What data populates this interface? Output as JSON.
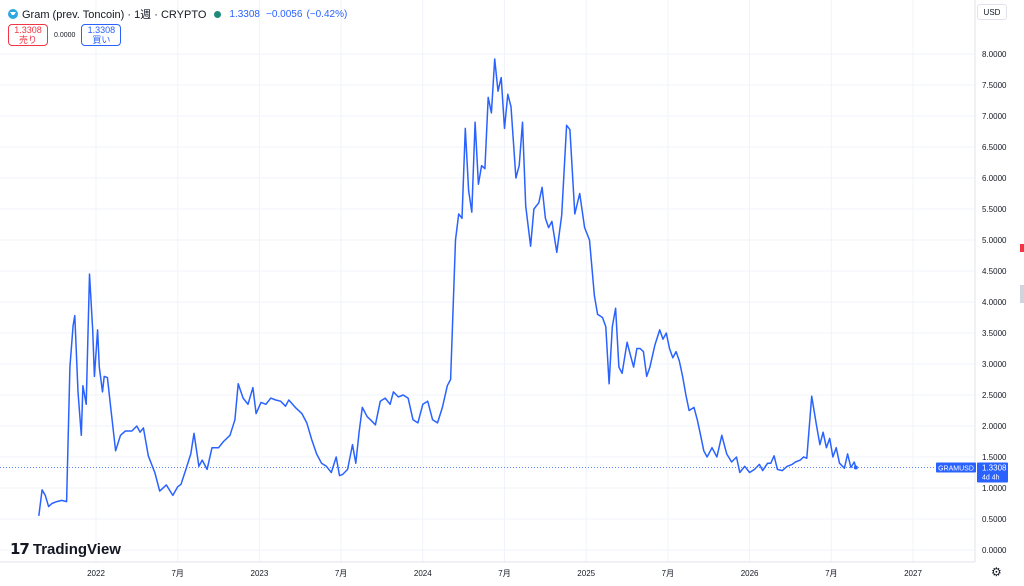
{
  "header": {
    "title": "Gram (prev. Toncoin) · 1週 · CRYPTO",
    "price": "1.3308",
    "change": "−0.0056",
    "change_pct": "(−0.42%)"
  },
  "trade": {
    "sell_price": "1.3308",
    "sell_label": "売り",
    "spread": "0.0000",
    "buy_price": "1.3308",
    "buy_label": "買い"
  },
  "currency": "USD",
  "branding": {
    "name": "TradingView"
  },
  "price_tag": {
    "symbol": "GRAMUSD",
    "value": "1.3308",
    "countdown": "4d 4h",
    "value_num": 1.3308
  },
  "colors": {
    "line": "#2962ff",
    "tag": "#2962ff",
    "sell": "#f23645",
    "buy": "#2962ff",
    "grid": "#f0f3fa"
  },
  "chart_data": {
    "type": "line",
    "title": "",
    "xlabel": "",
    "ylabel": "",
    "ylim": [
      0,
      8.5
    ],
    "grid": true,
    "y_ticks": [
      "0.0000",
      "0.5000",
      "1.0000",
      "1.5000",
      "2.0000",
      "2.5000",
      "3.0000",
      "3.5000",
      "4.0000",
      "4.5000",
      "5.0000",
      "5.5000",
      "6.0000",
      "6.5000",
      "7.0000",
      "7.5000",
      "8.0000"
    ],
    "x_ticks": [
      {
        "label": "2022",
        "t": 2022.0
      },
      {
        "label": "7月",
        "t": 2022.5
      },
      {
        "label": "2023",
        "t": 2023.0
      },
      {
        "label": "7月",
        "t": 2023.5
      },
      {
        "label": "2024",
        "t": 2024.0
      },
      {
        "label": "7月",
        "t": 2024.5
      },
      {
        "label": "2025",
        "t": 2025.0
      },
      {
        "label": "7月",
        "t": 2025.5
      },
      {
        "label": "2026",
        "t": 2026.0
      },
      {
        "label": "7月",
        "t": 2026.5
      },
      {
        "label": "2027",
        "t": 2027.0
      }
    ],
    "series": [
      {
        "values": [
          [
            2021.65,
            0.55
          ],
          [
            2021.67,
            0.97
          ],
          [
            2021.69,
            0.88
          ],
          [
            2021.71,
            0.7
          ],
          [
            2021.73,
            0.75
          ],
          [
            2021.76,
            0.78
          ],
          [
            2021.79,
            0.8
          ],
          [
            2021.82,
            0.78
          ],
          [
            2021.84,
            2.95
          ],
          [
            2021.86,
            3.62
          ],
          [
            2021.87,
            3.78
          ],
          [
            2021.89,
            2.55
          ],
          [
            2021.91,
            1.85
          ],
          [
            2021.92,
            2.65
          ],
          [
            2021.94,
            2.35
          ],
          [
            2021.96,
            4.45
          ],
          [
            2021.98,
            3.55
          ],
          [
            2021.99,
            2.8
          ],
          [
            2022.01,
            3.55
          ],
          [
            2022.02,
            2.95
          ],
          [
            2022.04,
            2.55
          ],
          [
            2022.05,
            2.8
          ],
          [
            2022.07,
            2.78
          ],
          [
            2022.09,
            2.3
          ],
          [
            2022.12,
            1.6
          ],
          [
            2022.15,
            1.85
          ],
          [
            2022.18,
            1.92
          ],
          [
            2022.22,
            1.92
          ],
          [
            2022.25,
            2.0
          ],
          [
            2022.27,
            1.9
          ],
          [
            2022.29,
            1.97
          ],
          [
            2022.32,
            1.52
          ],
          [
            2022.36,
            1.25
          ],
          [
            2022.39,
            0.95
          ],
          [
            2022.43,
            1.05
          ],
          [
            2022.47,
            0.88
          ],
          [
            2022.5,
            1.02
          ],
          [
            2022.52,
            1.06
          ],
          [
            2022.55,
            1.3
          ],
          [
            2022.58,
            1.55
          ],
          [
            2022.6,
            1.88
          ],
          [
            2022.63,
            1.35
          ],
          [
            2022.65,
            1.45
          ],
          [
            2022.68,
            1.3
          ],
          [
            2022.71,
            1.65
          ],
          [
            2022.75,
            1.65
          ],
          [
            2022.78,
            1.75
          ],
          [
            2022.82,
            1.85
          ],
          [
            2022.85,
            2.1
          ],
          [
            2022.87,
            2.68
          ],
          [
            2022.9,
            2.45
          ],
          [
            2022.93,
            2.35
          ],
          [
            2022.96,
            2.62
          ],
          [
            2022.98,
            2.2
          ],
          [
            2023.01,
            2.38
          ],
          [
            2023.04,
            2.35
          ],
          [
            2023.07,
            2.45
          ],
          [
            2023.1,
            2.42
          ],
          [
            2023.13,
            2.4
          ],
          [
            2023.16,
            2.32
          ],
          [
            2023.18,
            2.42
          ],
          [
            2023.22,
            2.3
          ],
          [
            2023.26,
            2.2
          ],
          [
            2023.29,
            2.05
          ],
          [
            2023.32,
            1.78
          ],
          [
            2023.35,
            1.55
          ],
          [
            2023.38,
            1.4
          ],
          [
            2023.41,
            1.35
          ],
          [
            2023.44,
            1.25
          ],
          [
            2023.47,
            1.5
          ],
          [
            2023.49,
            1.2
          ],
          [
            2023.51,
            1.22
          ],
          [
            2023.54,
            1.3
          ],
          [
            2023.57,
            1.7
          ],
          [
            2023.59,
            1.4
          ],
          [
            2023.61,
            1.9
          ],
          [
            2023.63,
            2.3
          ],
          [
            2023.66,
            2.15
          ],
          [
            2023.68,
            2.1
          ],
          [
            2023.71,
            2.02
          ],
          [
            2023.74,
            2.4
          ],
          [
            2023.77,
            2.45
          ],
          [
            2023.8,
            2.35
          ],
          [
            2023.82,
            2.55
          ],
          [
            2023.85,
            2.47
          ],
          [
            2023.88,
            2.5
          ],
          [
            2023.91,
            2.45
          ],
          [
            2023.94,
            2.1
          ],
          [
            2023.97,
            2.05
          ],
          [
            2024.0,
            2.35
          ],
          [
            2024.03,
            2.4
          ],
          [
            2024.06,
            2.1
          ],
          [
            2024.09,
            2.05
          ],
          [
            2024.12,
            2.3
          ],
          [
            2024.15,
            2.65
          ],
          [
            2024.17,
            2.75
          ],
          [
            2024.2,
            5.0
          ],
          [
            2024.22,
            5.42
          ],
          [
            2024.24,
            5.35
          ],
          [
            2024.26,
            6.8
          ],
          [
            2024.28,
            5.8
          ],
          [
            2024.3,
            5.45
          ],
          [
            2024.32,
            6.9
          ],
          [
            2024.34,
            5.9
          ],
          [
            2024.36,
            6.2
          ],
          [
            2024.38,
            6.15
          ],
          [
            2024.4,
            7.3
          ],
          [
            2024.42,
            7.05
          ],
          [
            2024.44,
            7.92
          ],
          [
            2024.46,
            7.4
          ],
          [
            2024.48,
            7.62
          ],
          [
            2024.5,
            6.8
          ],
          [
            2024.52,
            7.35
          ],
          [
            2024.54,
            7.15
          ],
          [
            2024.57,
            6.0
          ],
          [
            2024.59,
            6.2
          ],
          [
            2024.61,
            6.9
          ],
          [
            2024.63,
            5.55
          ],
          [
            2024.66,
            4.9
          ],
          [
            2024.68,
            5.5
          ],
          [
            2024.71,
            5.6
          ],
          [
            2024.73,
            5.85
          ],
          [
            2024.75,
            5.35
          ],
          [
            2024.77,
            5.2
          ],
          [
            2024.79,
            5.3
          ],
          [
            2024.82,
            4.8
          ],
          [
            2024.85,
            5.4
          ],
          [
            2024.88,
            6.85
          ],
          [
            2024.9,
            6.78
          ],
          [
            2024.93,
            5.42
          ],
          [
            2024.96,
            5.75
          ],
          [
            2024.99,
            5.2
          ],
          [
            2025.02,
            5.0
          ],
          [
            2025.05,
            4.1
          ],
          [
            2025.07,
            3.8
          ],
          [
            2025.1,
            3.75
          ],
          [
            2025.12,
            3.6
          ],
          [
            2025.14,
            2.68
          ],
          [
            2025.16,
            3.6
          ],
          [
            2025.18,
            3.9
          ],
          [
            2025.2,
            2.95
          ],
          [
            2025.22,
            2.85
          ],
          [
            2025.25,
            3.35
          ],
          [
            2025.27,
            3.15
          ],
          [
            2025.29,
            2.95
          ],
          [
            2025.31,
            3.25
          ],
          [
            2025.33,
            3.25
          ],
          [
            2025.35,
            3.2
          ],
          [
            2025.37,
            2.8
          ],
          [
            2025.39,
            2.95
          ],
          [
            2025.42,
            3.3
          ],
          [
            2025.45,
            3.55
          ],
          [
            2025.47,
            3.4
          ],
          [
            2025.49,
            3.5
          ],
          [
            2025.51,
            3.25
          ],
          [
            2025.53,
            3.1
          ],
          [
            2025.55,
            3.2
          ],
          [
            2025.57,
            3.05
          ],
          [
            2025.59,
            2.8
          ],
          [
            2025.61,
            2.5
          ],
          [
            2025.63,
            2.25
          ],
          [
            2025.66,
            2.3
          ],
          [
            2025.68,
            2.1
          ],
          [
            2025.7,
            1.85
          ],
          [
            2025.72,
            1.6
          ],
          [
            2025.74,
            1.5
          ],
          [
            2025.77,
            1.65
          ],
          [
            2025.8,
            1.5
          ],
          [
            2025.83,
            1.85
          ],
          [
            2025.86,
            1.55
          ],
          [
            2025.89,
            1.42
          ],
          [
            2025.92,
            1.5
          ],
          [
            2025.94,
            1.25
          ],
          [
            2025.97,
            1.35
          ],
          [
            2026.0,
            1.25
          ],
          [
            2026.03,
            1.3
          ],
          [
            2026.06,
            1.38
          ],
          [
            2026.08,
            1.28
          ],
          [
            2026.11,
            1.4
          ],
          [
            2026.13,
            1.4
          ],
          [
            2026.15,
            1.52
          ],
          [
            2026.17,
            1.3
          ],
          [
            2026.2,
            1.28
          ],
          [
            2026.23,
            1.35
          ],
          [
            2026.26,
            1.38
          ],
          [
            2026.28,
            1.42
          ],
          [
            2026.31,
            1.45
          ],
          [
            2026.33,
            1.5
          ],
          [
            2026.35,
            1.48
          ],
          [
            2026.38,
            2.48
          ],
          [
            2026.41,
            2.0
          ],
          [
            2026.43,
            1.7
          ],
          [
            2026.45,
            1.9
          ],
          [
            2026.47,
            1.65
          ],
          [
            2026.49,
            1.8
          ],
          [
            2026.51,
            1.5
          ],
          [
            2026.53,
            1.65
          ],
          [
            2026.55,
            1.4
          ],
          [
            2026.58,
            1.32
          ],
          [
            2026.6,
            1.55
          ],
          [
            2026.62,
            1.33
          ],
          [
            2026.64,
            1.42
          ],
          [
            2026.65,
            1.3308
          ]
        ]
      }
    ]
  }
}
